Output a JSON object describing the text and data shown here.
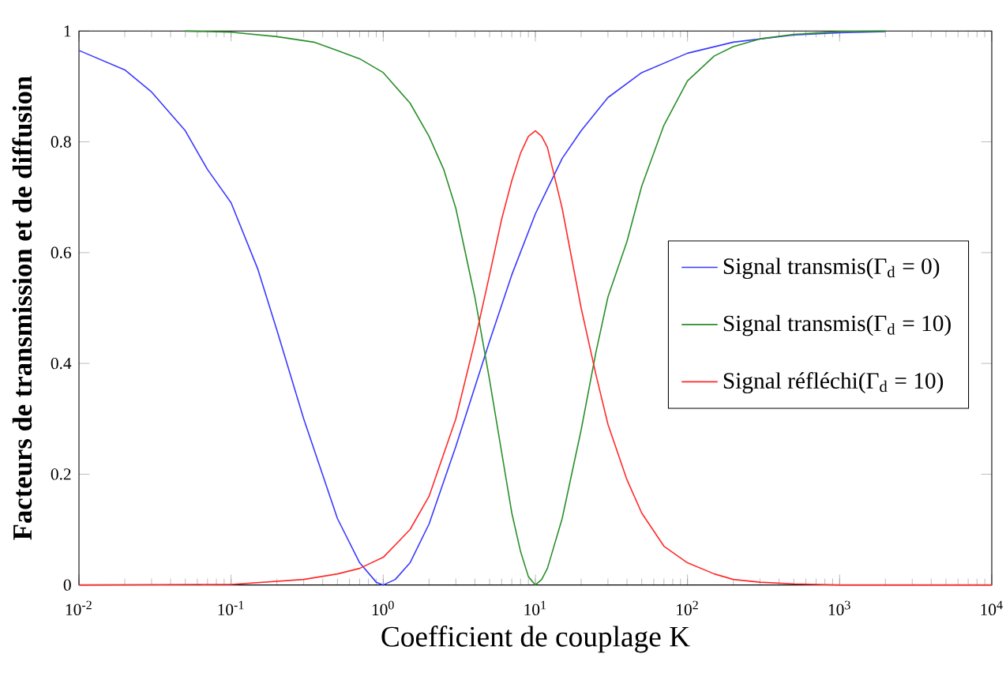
{
  "chart_data": {
    "type": "line",
    "xlabel": "Coefficient de couplage K",
    "ylabel": "Facteurs de transmission et de diffusion",
    "log": "x",
    "legend": "right",
    "grid": false,
    "xlim": [
      0.01,
      10000
    ],
    "ylim": [
      0,
      1
    ],
    "xticks": [
      {
        "value": 0.01,
        "label": "10$^{-2}$"
      },
      {
        "value": 0.1,
        "label": "10$^{-1}$"
      },
      {
        "value": 1,
        "label": "10$^{0}$"
      },
      {
        "value": 10,
        "label": "10$^{1}$"
      },
      {
        "value": 100,
        "label": "10$^{2}$"
      },
      {
        "value": 1000,
        "label": "10$^{3}$"
      },
      {
        "value": 10000,
        "label": "10$^{4}$"
      }
    ],
    "yticks": [
      0,
      0.2,
      0.4,
      0.6,
      0.8,
      1
    ],
    "series": [
      {
        "name": "Signal transmis(Γ$_{d}$ = 0)",
        "color": "#3a3aff",
        "x": [
          0.01,
          0.02,
          0.03,
          0.05,
          0.07,
          0.1,
          0.15,
          0.2,
          0.3,
          0.5,
          0.7,
          0.9,
          1,
          1.2,
          1.5,
          2,
          3,
          5,
          7,
          10,
          15,
          20,
          30,
          50,
          100,
          200,
          500,
          1000,
          2000
        ],
        "values": [
          0.965,
          0.93,
          0.89,
          0.82,
          0.75,
          0.69,
          0.57,
          0.46,
          0.3,
          0.12,
          0.04,
          0.005,
          0,
          0.01,
          0.04,
          0.11,
          0.25,
          0.44,
          0.56,
          0.67,
          0.77,
          0.82,
          0.88,
          0.925,
          0.96,
          0.98,
          0.993,
          0.997,
          0.999
        ]
      },
      {
        "name": "Signal transmis(Γ$_{d}$ = 10)",
        "color": "#2a8f2a",
        "x": [
          0.05,
          0.1,
          0.2,
          0.35,
          0.5,
          0.7,
          1,
          1.5,
          2,
          2.5,
          3,
          4,
          5,
          6,
          7,
          8,
          9,
          10,
          11,
          12,
          15,
          20,
          25,
          30,
          40,
          50,
          70,
          100,
          150,
          200,
          300,
          500,
          1000,
          2000
        ],
        "values": [
          1,
          0.998,
          0.99,
          0.98,
          0.965,
          0.95,
          0.925,
          0.87,
          0.81,
          0.75,
          0.68,
          0.52,
          0.37,
          0.24,
          0.13,
          0.06,
          0.015,
          0,
          0.01,
          0.03,
          0.12,
          0.28,
          0.42,
          0.52,
          0.62,
          0.72,
          0.83,
          0.91,
          0.955,
          0.972,
          0.986,
          0.994,
          0.999,
          1
        ]
      },
      {
        "name": "Signal réfléchi(Γ$_{d}$ = 10)",
        "color": "#ff2a2a",
        "x": [
          0.01,
          0.1,
          0.3,
          0.5,
          0.7,
          1,
          1.5,
          2,
          3,
          4,
          5,
          6,
          7,
          8,
          9,
          10,
          11,
          12,
          15,
          20,
          25,
          30,
          40,
          50,
          70,
          100,
          150,
          200,
          300,
          500,
          1000,
          10000
        ],
        "values": [
          0,
          0.001,
          0.01,
          0.02,
          0.03,
          0.05,
          0.1,
          0.16,
          0.3,
          0.44,
          0.56,
          0.66,
          0.73,
          0.78,
          0.81,
          0.82,
          0.81,
          0.79,
          0.68,
          0.5,
          0.38,
          0.29,
          0.19,
          0.13,
          0.07,
          0.04,
          0.02,
          0.01,
          0.005,
          0.002,
          0,
          0
        ]
      }
    ]
  }
}
